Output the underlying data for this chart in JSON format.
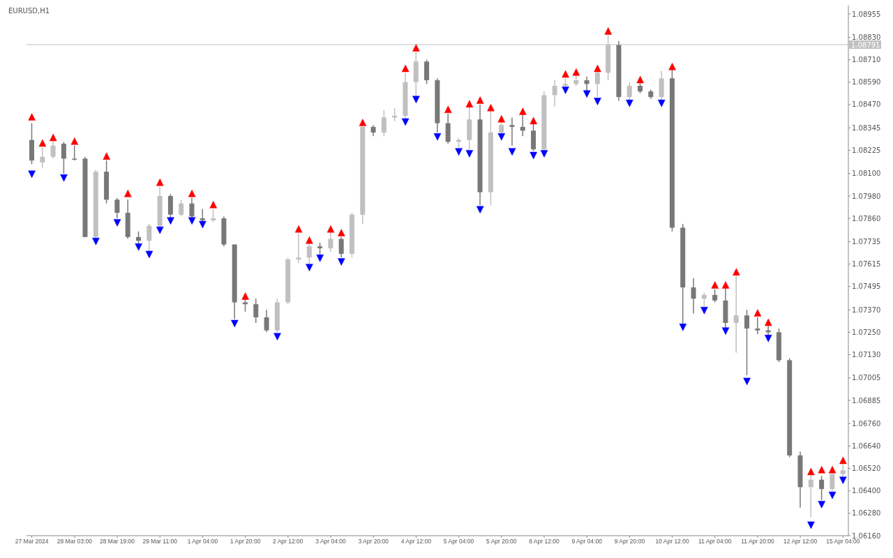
{
  "chart_data": {
    "type": "candlestick",
    "title": "EURUSD,H1",
    "categories": [
      "27 Mar 2024",
      null,
      null,
      null,
      "28 Mar 03:00",
      null,
      null,
      null,
      "28 Mar 19:00",
      null,
      null,
      null,
      "29 Mar 11:00",
      null,
      null,
      null,
      "1 Apr 04:00",
      null,
      null,
      null,
      "1 Apr 20:00",
      null,
      null,
      null,
      "2 Apr 12:00",
      null,
      null,
      null,
      "3 Apr 04:00",
      null,
      null,
      null,
      "3 Apr 20:00",
      null,
      null,
      null,
      "4 Apr 12:00",
      null,
      null,
      null,
      "5 Apr 04:00",
      null,
      null,
      null,
      "5 Apr 20:00",
      null,
      null,
      null,
      "8 Apr 12:00",
      null,
      null,
      null,
      "9 Apr 04:00",
      null,
      null,
      null,
      "9 Apr 20:00",
      null,
      null,
      null,
      "10 Apr 12:00",
      null,
      null,
      null,
      "11 Apr 04:00",
      null,
      null,
      null,
      "11 Apr 20:00",
      null,
      null,
      null,
      "12 Apr 12:00",
      null,
      null,
      null,
      "15 Apr 04:00"
    ],
    "ohlc": [
      [
        1.0828,
        1.0837,
        1.0815,
        1.0817
      ],
      [
        1.0816,
        1.0824,
        1.0813,
        1.0819
      ],
      [
        1.0819,
        1.0828,
        1.0818,
        1.0825
      ],
      [
        1.0826,
        1.0827,
        1.081,
        1.0818
      ],
      [
        1.0818,
        1.0825,
        1.0817,
        1.0818
      ],
      [
        1.0818,
        1.0819,
        1.0776,
        1.0776
      ],
      [
        1.0776,
        1.0812,
        1.0775,
        1.0811
      ],
      [
        1.0811,
        1.0817,
        1.0794,
        1.0796
      ],
      [
        1.0796,
        1.0797,
        1.0786,
        1.0789
      ],
      [
        1.0789,
        1.0796,
        1.0775,
        1.0776
      ],
      [
        1.0776,
        1.0779,
        1.0772,
        1.0774
      ],
      [
        1.0774,
        1.0783,
        1.0768,
        1.0782
      ],
      [
        1.0782,
        1.0803,
        1.0781,
        1.0798
      ],
      [
        1.0798,
        1.0799,
        1.0786,
        1.0788
      ],
      [
        1.0788,
        1.0796,
        1.0787,
        1.0794
      ],
      [
        1.0794,
        1.0797,
        1.0786,
        1.0787
      ],
      [
        1.0786,
        1.0791,
        1.0784,
        1.0785
      ],
      [
        1.0785,
        1.0791,
        1.0784,
        1.0786
      ],
      [
        1.0786,
        1.0787,
        1.0771,
        1.0772
      ],
      [
        1.0772,
        1.0772,
        1.0732,
        1.0741
      ],
      [
        1.0741,
        1.0743,
        1.0736,
        1.074
      ],
      [
        1.074,
        1.0743,
        1.073,
        1.0733
      ],
      [
        1.0733,
        1.0737,
        1.0725,
        1.0726
      ],
      [
        1.0726,
        1.0743,
        1.0725,
        1.0741
      ],
      [
        1.0741,
        1.0765,
        1.074,
        1.0764
      ],
      [
        1.0764,
        1.0778,
        1.0762,
        1.0765
      ],
      [
        1.0765,
        1.0773,
        1.0761,
        1.0771
      ],
      [
        1.0771,
        1.0773,
        1.0766,
        1.077
      ],
      [
        1.077,
        1.0779,
        1.0768,
        1.0775
      ],
      [
        1.0775,
        1.0776,
        1.0765,
        1.0767
      ],
      [
        1.0767,
        1.0789,
        1.0765,
        1.0788
      ],
      [
        1.0788,
        1.0836,
        1.0783,
        1.0835
      ],
      [
        1.0835,
        1.0836,
        1.083,
        1.0832
      ],
      [
        1.0832,
        1.0844,
        1.083,
        1.084
      ],
      [
        1.084,
        1.0845,
        1.0838,
        1.0841
      ],
      [
        1.0841,
        1.0864,
        1.0839,
        1.0859
      ],
      [
        1.0859,
        1.0875,
        1.0851,
        1.087
      ],
      [
        1.087,
        1.0871,
        1.0858,
        1.086
      ],
      [
        1.086,
        1.0861,
        1.0832,
        1.0837
      ],
      [
        1.0837,
        1.0842,
        1.0826,
        1.0827
      ],
      [
        1.0827,
        1.0829,
        1.0824,
        1.0828
      ],
      [
        1.0828,
        1.0846,
        1.0823,
        1.0839
      ],
      [
        1.0839,
        1.0847,
        1.0793,
        1.08
      ],
      [
        1.08,
        1.0844,
        1.0793,
        1.0832
      ],
      [
        1.0832,
        1.0838,
        1.0831,
        1.0836
      ],
      [
        1.0836,
        1.084,
        1.0825,
        1.0835
      ],
      [
        1.0835,
        1.0842,
        1.083,
        1.0833
      ],
      [
        1.0833,
        1.0837,
        1.0822,
        1.0823
      ],
      [
        1.0823,
        1.0854,
        1.0822,
        1.0852
      ],
      [
        1.0852,
        1.086,
        1.0846,
        1.0857
      ],
      [
        1.0857,
        1.0861,
        1.0856,
        1.0858
      ],
      [
        1.0858,
        1.0863,
        1.0857,
        1.086
      ],
      [
        1.086,
        1.0862,
        1.0854,
        1.0858
      ],
      [
        1.0858,
        1.0865,
        1.0851,
        1.0864
      ],
      [
        1.0864,
        1.0884,
        1.086,
        1.0879
      ],
      [
        1.0879,
        1.0881,
        1.0849,
        1.0851
      ],
      [
        1.0851,
        1.0859,
        1.0849,
        1.0857
      ],
      [
        1.0857,
        1.0859,
        1.0853,
        1.0854
      ],
      [
        1.0854,
        1.0855,
        1.085,
        1.0851
      ],
      [
        1.0851,
        1.0865,
        1.0849,
        1.0861
      ],
      [
        1.0861,
        1.0866,
        1.0779,
        1.0781
      ],
      [
        1.0781,
        1.0783,
        1.0729,
        1.0749
      ],
      [
        1.0749,
        1.0754,
        1.0735,
        1.0743
      ],
      [
        1.0743,
        1.0746,
        1.0739,
        1.0745
      ],
      [
        1.0745,
        1.0748,
        1.0741,
        1.0742
      ],
      [
        1.0742,
        1.0749,
        1.0727,
        1.073
      ],
      [
        1.073,
        1.0755,
        1.0714,
        1.0734
      ],
      [
        1.0734,
        1.0737,
        1.0702,
        1.0727
      ],
      [
        1.0727,
        1.0733,
        1.0724,
        1.0726
      ],
      [
        1.0726,
        1.0729,
        1.0723,
        1.0725
      ],
      [
        1.0725,
        1.0727,
        1.0709,
        1.071
      ],
      [
        1.071,
        1.0711,
        1.0658,
        1.0659
      ],
      [
        1.0659,
        1.0661,
        1.0631,
        1.0642
      ],
      [
        1.0642,
        1.0649,
        1.0626,
        1.0646
      ],
      [
        1.0646,
        1.0648,
        1.0635,
        1.0641
      ],
      [
        1.0641,
        1.065,
        1.064,
        1.0649
      ],
      [
        1.0649,
        1.0654,
        1.0647,
        1.0651
      ]
    ],
    "colors": [
      "#787878",
      "#c0c0c0",
      "#c0c0c0",
      "#787878",
      "#787878",
      "#787878",
      "#c0c0c0",
      "#787878",
      "#787878",
      "#787878",
      "#787878",
      "#c0c0c0",
      "#c0c0c0",
      "#787878",
      "#c0c0c0",
      "#787878",
      "#787878",
      "#c0c0c0",
      "#787878",
      "#787878",
      "#787878",
      "#787878",
      "#787878",
      "#c0c0c0",
      "#c0c0c0",
      "#c0c0c0",
      "#c0c0c0",
      "#787878",
      "#c0c0c0",
      "#787878",
      "#c0c0c0",
      "#c0c0c0",
      "#787878",
      "#c0c0c0",
      "#c0c0c0",
      "#c0c0c0",
      "#c0c0c0",
      "#787878",
      "#787878",
      "#787878",
      "#c0c0c0",
      "#c0c0c0",
      "#787878",
      "#c0c0c0",
      "#c0c0c0",
      "#787878",
      "#787878",
      "#787878",
      "#c0c0c0",
      "#c0c0c0",
      "#c0c0c0",
      "#c0c0c0",
      "#787878",
      "#c0c0c0",
      "#c0c0c0",
      "#787878",
      "#c0c0c0",
      "#787878",
      "#787878",
      "#c0c0c0",
      "#787878",
      "#787878",
      "#787878",
      "#c0c0c0",
      "#787878",
      "#787878",
      "#c0c0c0",
      "#787878",
      "#787878",
      "#787878",
      "#787878",
      "#787878",
      "#787878",
      "#c0c0c0",
      "#787878",
      "#c0c0c0",
      "#c0c0c0"
    ],
    "series": [
      {
        "type": "scatter",
        "marker": "triangle",
        "color": "#ff0000",
        "values": [
          1.084,
          1.0826,
          1.0829,
          null,
          1.0827,
          null,
          null,
          1.0819,
          null,
          1.0799,
          null,
          null,
          1.0805,
          null,
          null,
          1.0799,
          null,
          1.0793,
          null,
          null,
          1.0744,
          null,
          null,
          null,
          null,
          1.078,
          1.0774,
          null,
          1.078,
          1.0778,
          null,
          1.0837,
          null,
          null,
          null,
          1.0866,
          1.0877,
          null,
          null,
          1.0844,
          null,
          1.0847,
          1.0849,
          1.0845,
          1.0839,
          null,
          1.0843,
          1.0838,
          null,
          null,
          1.0863,
          1.0864,
          null,
          1.0866,
          1.0886,
          null,
          null,
          1.086,
          null,
          null,
          1.0867,
          null,
          null,
          null,
          1.075,
          1.075,
          1.0757,
          null,
          1.0735,
          1.073,
          null,
          null,
          null,
          1.065,
          1.0651,
          1.0651,
          1.0656
        ]
      },
      {
        "type": "scatter",
        "marker": "triangle",
        "color": "#0000ff",
        "values": [
          1.081,
          null,
          null,
          1.0808,
          null,
          null,
          1.0774,
          null,
          1.0784,
          null,
          1.0771,
          1.0767,
          1.078,
          1.0785,
          null,
          1.0785,
          1.0783,
          null,
          null,
          1.073,
          null,
          null,
          null,
          1.0723,
          null,
          null,
          1.076,
          1.0765,
          null,
          1.0763,
          null,
          null,
          null,
          null,
          null,
          1.0838,
          1.085,
          null,
          1.083,
          null,
          1.0822,
          1.0821,
          1.0791,
          null,
          1.083,
          1.0822,
          null,
          1.082,
          1.0821,
          null,
          1.0855,
          null,
          1.0853,
          1.0849,
          null,
          null,
          1.0848,
          null,
          null,
          1.0848,
          null,
          1.0728,
          null,
          1.0737,
          null,
          1.0726,
          null,
          1.0699,
          null,
          1.0722,
          null,
          null,
          null,
          1.0622,
          1.0633,
          1.0638,
          1.0646
        ]
      }
    ],
    "ylim": [
      1.0616,
      1.09
    ],
    "yticks": [
      1.08955,
      {
        "value": 1.0883,
        "label": "1.08830"
      },
      {
        "value": 1.0871,
        "label": "1.08710"
      },
      {
        "value": 1.0859,
        "label": "1.08590"
      },
      {
        "value": 1.0847,
        "label": "1.08470"
      },
      1.08345,
      1.08225,
      {
        "value": 1.081,
        "label": "1.08100"
      },
      {
        "value": 1.0798,
        "label": "1.07980"
      },
      {
        "value": 1.0786,
        "label": "1.07860"
      },
      1.07735,
      1.07615,
      1.07495,
      {
        "value": 1.0737,
        "label": "1.07370"
      },
      {
        "value": 1.0725,
        "label": "1.07250"
      },
      {
        "value": 1.0713,
        "label": "1.07130"
      },
      1.07005,
      1.06885,
      {
        "value": 1.0676,
        "label": "1.06760"
      },
      {
        "value": 1.0664,
        "label": "1.06640"
      },
      {
        "value": 1.0652,
        "label": "1.06520"
      },
      {
        "value": 1.064,
        "label": "1.06400"
      },
      {
        "value": 1.0628,
        "label": "1.06280"
      },
      {
        "value": 1.0616,
        "label": "1.06160"
      }
    ],
    "ref_lines": [
      {
        "axis": "y",
        "value": 1.08791,
        "label": "1.08791",
        "color": "#c0c0c0"
      }
    ]
  }
}
